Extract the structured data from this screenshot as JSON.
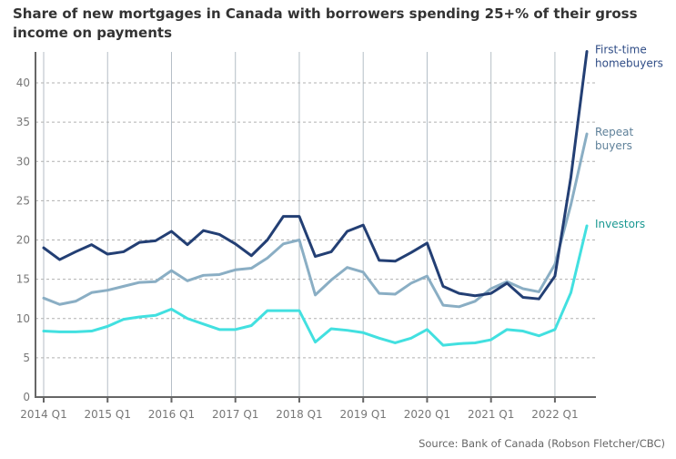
{
  "chart_data": {
    "type": "line",
    "title": "Share of new mortgages in Canada with borrowers spending 25+% of their gross income on payments",
    "source": "Source: Bank of Canada (Robson Fletcher/CBC)",
    "xlabel": "",
    "ylabel": "",
    "ylim": [
      0,
      44
    ],
    "yticks": [
      0,
      5,
      10,
      15,
      20,
      25,
      30,
      35,
      40
    ],
    "xtick_labels": [
      "2014 Q1",
      "2015 Q1",
      "2016 Q1",
      "2017 Q1",
      "2018 Q1",
      "2019 Q1",
      "2020 Q1",
      "2021 Q1",
      "2022 Q1"
    ],
    "x_start": "2014 Q1",
    "x_end": "2022 Q3",
    "grid": "horizontal dashed, vertical at year ticks",
    "legend": "inline labels at right end of lines",
    "series": [
      {
        "name": "First-time homebuyers",
        "label_lines": [
          "First-time",
          "homebuyers"
        ],
        "color": "#233f74",
        "label_color": "#2f4c86",
        "values": [
          19.0,
          17.5,
          18.5,
          19.4,
          18.2,
          18.5,
          19.7,
          19.9,
          21.1,
          19.4,
          21.2,
          20.7,
          19.5,
          18.0,
          20.0,
          23.0,
          23.0,
          17.9,
          18.5,
          21.1,
          21.9,
          17.4,
          17.3,
          18.4,
          19.6,
          14.1,
          13.2,
          12.9,
          13.2,
          14.5,
          12.7,
          12.5,
          15.4,
          28.0,
          44.0
        ]
      },
      {
        "name": "Repeat buyers",
        "label_lines": [
          "Repeat",
          "buyers"
        ],
        "color": "#8aaec4",
        "label_color": "#5f819a",
        "values": [
          12.6,
          11.8,
          12.2,
          13.3,
          13.6,
          14.1,
          14.6,
          14.7,
          16.1,
          14.8,
          15.5,
          15.6,
          16.2,
          16.4,
          17.7,
          19.5,
          20.0,
          13.0,
          14.9,
          16.5,
          15.9,
          13.2,
          13.1,
          14.5,
          15.4,
          11.7,
          11.5,
          12.2,
          13.8,
          14.7,
          13.8,
          13.4,
          16.9,
          24.5,
          33.5
        ]
      },
      {
        "name": "Investors",
        "label_lines": [
          "Investors"
        ],
        "color": "#42e0e0",
        "label_color": "#1a9892",
        "values": [
          8.4,
          8.3,
          8.3,
          8.4,
          9.0,
          9.9,
          10.2,
          10.4,
          11.2,
          10.0,
          9.3,
          8.6,
          8.6,
          9.1,
          11.0,
          11.0,
          11.0,
          7.0,
          8.7,
          8.5,
          8.2,
          7.5,
          6.9,
          7.5,
          8.6,
          6.6,
          6.8,
          6.9,
          7.3,
          8.6,
          8.4,
          7.8,
          8.6,
          13.3,
          21.8
        ]
      }
    ]
  }
}
